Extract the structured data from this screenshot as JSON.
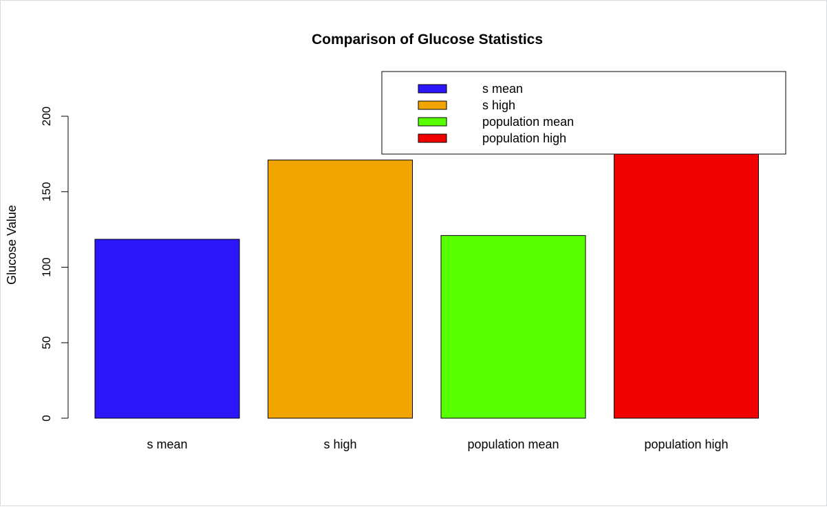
{
  "chart_data": {
    "type": "bar",
    "title": "Comparison of Glucose Statistics",
    "xlabel": "",
    "ylabel": "Glucose Value",
    "categories": [
      "s mean",
      "s high",
      "population mean",
      "population high"
    ],
    "values": [
      118.5,
      171,
      121,
      199
    ],
    "colors": [
      "#2b17fa",
      "#f2a400",
      "#57ff00",
      "#f10000"
    ],
    "ylim": [
      0,
      200
    ],
    "yticks": [
      0,
      50,
      100,
      150,
      200
    ],
    "grid": false,
    "legend": {
      "position": "top-right",
      "entries": [
        "s mean",
        "s high",
        "population mean",
        "population high"
      ]
    }
  }
}
